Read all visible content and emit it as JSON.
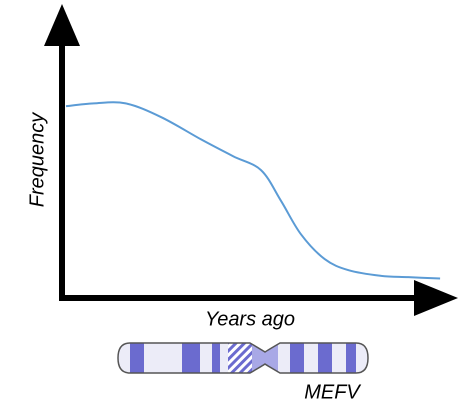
{
  "chart_data": {
    "type": "line",
    "x_label": "Years ago",
    "y_label": "Frequency",
    "annotation": "MEFV",
    "x": [
      1,
      8,
      16,
      25,
      35,
      43,
      50,
      55,
      60,
      66,
      72,
      80,
      87,
      95
    ],
    "series": [
      {
        "color": "#5b9bd5",
        "values": [
          69,
          70,
          70,
          65,
          57,
          51,
          46,
          35,
          23,
          14,
          10,
          8,
          7.5,
          7
        ]
      }
    ],
    "xlim": [
      0,
      100
    ],
    "ylim": [
      0,
      100
    ]
  }
}
